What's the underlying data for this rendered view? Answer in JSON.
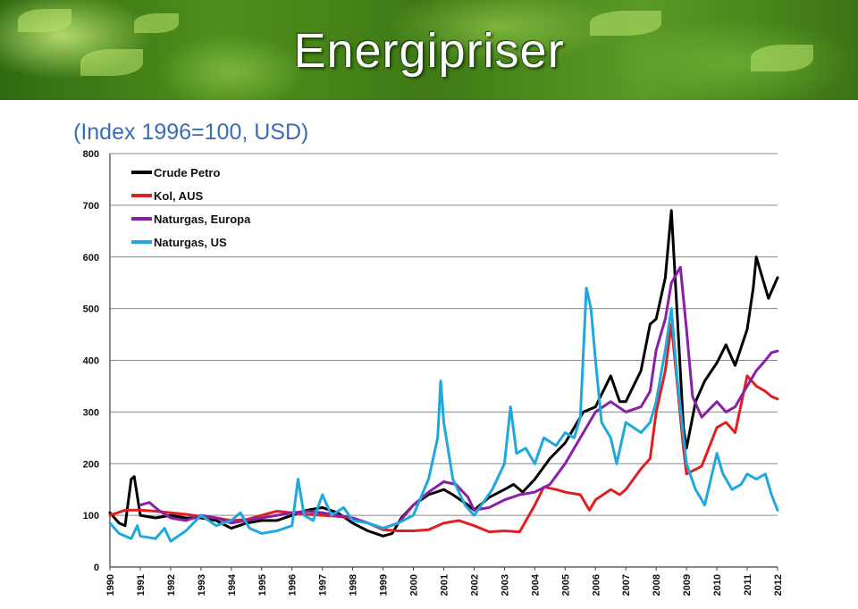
{
  "header": {
    "title": "Energipriser"
  },
  "chart_data": {
    "type": "line",
    "title": "(Index 1996=100, USD)",
    "xlabel": "",
    "ylabel": "",
    "xlim": [
      1990,
      2012
    ],
    "ylim": [
      0,
      800
    ],
    "yticks": [
      "0",
      "100",
      "200",
      "300",
      "400",
      "500",
      "600",
      "700",
      "800"
    ],
    "xticks": [
      "1990",
      "1991",
      "1992",
      "1993",
      "1994",
      "1995",
      "1996",
      "1997",
      "1998",
      "1999",
      "2000",
      "2001",
      "2002",
      "2003",
      "2004",
      "2005",
      "2006",
      "2007",
      "2008",
      "2009",
      "2010",
      "2011",
      "2012"
    ],
    "grid": "horizontal",
    "legend_position": "top-left",
    "series": [
      {
        "name": "Crude Petro",
        "color": "#000000",
        "points": [
          [
            1990,
            105
          ],
          [
            1990.3,
            85
          ],
          [
            1990.5,
            80
          ],
          [
            1990.7,
            170
          ],
          [
            1990.8,
            175
          ],
          [
            1991,
            100
          ],
          [
            1991.5,
            95
          ],
          [
            1992,
            100
          ],
          [
            1992.5,
            95
          ],
          [
            1993,
            95
          ],
          [
            1993.5,
            90
          ],
          [
            1994,
            75
          ],
          [
            1994.5,
            85
          ],
          [
            1995,
            90
          ],
          [
            1995.5,
            90
          ],
          [
            1996,
            100
          ],
          [
            1996.5,
            110
          ],
          [
            1997,
            115
          ],
          [
            1997.5,
            105
          ],
          [
            1998,
            85
          ],
          [
            1998.5,
            70
          ],
          [
            1999,
            60
          ],
          [
            1999.3,
            65
          ],
          [
            1999.6,
            95
          ],
          [
            2000,
            120
          ],
          [
            2000.5,
            140
          ],
          [
            2001,
            150
          ],
          [
            2001.3,
            140
          ],
          [
            2001.8,
            120
          ],
          [
            2002,
            110
          ],
          [
            2002.5,
            135
          ],
          [
            2003,
            150
          ],
          [
            2003.3,
            160
          ],
          [
            2003.6,
            145
          ],
          [
            2004,
            170
          ],
          [
            2004.5,
            210
          ],
          [
            2005,
            240
          ],
          [
            2005.6,
            300
          ],
          [
            2006,
            310
          ],
          [
            2006.5,
            370
          ],
          [
            2006.8,
            320
          ],
          [
            2007,
            320
          ],
          [
            2007.5,
            380
          ],
          [
            2007.8,
            470
          ],
          [
            2008,
            480
          ],
          [
            2008.3,
            560
          ],
          [
            2008.5,
            690
          ],
          [
            2008.7,
            480
          ],
          [
            2008.9,
            270
          ],
          [
            2009,
            230
          ],
          [
            2009.3,
            320
          ],
          [
            2009.6,
            360
          ],
          [
            2010,
            395
          ],
          [
            2010.3,
            430
          ],
          [
            2010.6,
            390
          ],
          [
            2011,
            460
          ],
          [
            2011.2,
            540
          ],
          [
            2011.3,
            600
          ],
          [
            2011.5,
            560
          ],
          [
            2011.7,
            520
          ],
          [
            2012,
            560
          ]
        ]
      },
      {
        "name": "Kol, AUS",
        "color": "#e02020",
        "points": [
          [
            1990,
            100
          ],
          [
            1990.5,
            110
          ],
          [
            1991,
            110
          ],
          [
            1991.5,
            108
          ],
          [
            1992,
            105
          ],
          [
            1992.5,
            102
          ],
          [
            1993,
            98
          ],
          [
            1993.5,
            95
          ],
          [
            1994,
            90
          ],
          [
            1994.5,
            92
          ],
          [
            1995,
            100
          ],
          [
            1995.5,
            108
          ],
          [
            1996,
            105
          ],
          [
            1996.5,
            102
          ],
          [
            1997,
            100
          ],
          [
            1997.5,
            98
          ],
          [
            1998,
            95
          ],
          [
            1998.5,
            85
          ],
          [
            1999,
            72
          ],
          [
            1999.5,
            70
          ],
          [
            2000,
            70
          ],
          [
            2000.5,
            72
          ],
          [
            2001,
            85
          ],
          [
            2001.5,
            90
          ],
          [
            2002,
            80
          ],
          [
            2002.5,
            68
          ],
          [
            2003,
            70
          ],
          [
            2003.5,
            68
          ],
          [
            2004,
            120
          ],
          [
            2004.3,
            155
          ],
          [
            2004.7,
            150
          ],
          [
            2005,
            145
          ],
          [
            2005.5,
            140
          ],
          [
            2005.8,
            110
          ],
          [
            2006,
            130
          ],
          [
            2006.5,
            150
          ],
          [
            2006.8,
            140
          ],
          [
            2007,
            150
          ],
          [
            2007.5,
            190
          ],
          [
            2007.8,
            210
          ],
          [
            2008,
            300
          ],
          [
            2008.3,
            380
          ],
          [
            2008.5,
            470
          ],
          [
            2008.7,
            350
          ],
          [
            2008.9,
            230
          ],
          [
            2009,
            180
          ],
          [
            2009.5,
            195
          ],
          [
            2010,
            270
          ],
          [
            2010.3,
            280
          ],
          [
            2010.6,
            260
          ],
          [
            2011,
            370
          ],
          [
            2011.3,
            350
          ],
          [
            2011.6,
            340
          ],
          [
            2011.8,
            330
          ],
          [
            2012,
            325
          ]
        ]
      },
      {
        "name": "Naturgas, Europa",
        "color": "#8a1fa8",
        "points": [
          [
            1991,
            120
          ],
          [
            1991.3,
            125
          ],
          [
            1991.6,
            110
          ],
          [
            1992,
            95
          ],
          [
            1992.5,
            90
          ],
          [
            1993,
            100
          ],
          [
            1993.5,
            95
          ],
          [
            1994,
            85
          ],
          [
            1994.5,
            90
          ],
          [
            1995,
            95
          ],
          [
            1995.5,
            100
          ],
          [
            1996,
            105
          ],
          [
            1996.5,
            108
          ],
          [
            1997,
            105
          ],
          [
            1997.5,
            100
          ],
          [
            1998,
            95
          ],
          [
            1998.5,
            85
          ],
          [
            1999,
            75
          ],
          [
            1999.5,
            85
          ],
          [
            2000,
            120
          ],
          [
            2000.5,
            145
          ],
          [
            2001,
            165
          ],
          [
            2001.4,
            160
          ],
          [
            2001.8,
            135
          ],
          [
            2002,
            110
          ],
          [
            2002.5,
            115
          ],
          [
            2003,
            130
          ],
          [
            2003.5,
            140
          ],
          [
            2004,
            145
          ],
          [
            2004.5,
            160
          ],
          [
            2005,
            200
          ],
          [
            2005.5,
            250
          ],
          [
            2006,
            300
          ],
          [
            2006.5,
            320
          ],
          [
            2007,
            300
          ],
          [
            2007.5,
            310
          ],
          [
            2007.8,
            340
          ],
          [
            2008,
            420
          ],
          [
            2008.3,
            480
          ],
          [
            2008.5,
            550
          ],
          [
            2008.8,
            580
          ],
          [
            2009,
            460
          ],
          [
            2009.2,
            330
          ],
          [
            2009.5,
            290
          ],
          [
            2010,
            320
          ],
          [
            2010.3,
            300
          ],
          [
            2010.6,
            310
          ],
          [
            2011,
            350
          ],
          [
            2011.3,
            380
          ],
          [
            2011.6,
            400
          ],
          [
            2011.8,
            415
          ],
          [
            2012,
            418
          ]
        ]
      },
      {
        "name": "Naturgas, US",
        "color": "#1ea8de",
        "points": [
          [
            1990,
            85
          ],
          [
            1990.3,
            65
          ],
          [
            1990.7,
            55
          ],
          [
            1990.9,
            80
          ],
          [
            1991,
            60
          ],
          [
            1991.5,
            55
          ],
          [
            1991.8,
            75
          ],
          [
            1992,
            50
          ],
          [
            1992.5,
            70
          ],
          [
            1993,
            100
          ],
          [
            1993.5,
            80
          ],
          [
            1994,
            90
          ],
          [
            1994.3,
            105
          ],
          [
            1994.6,
            75
          ],
          [
            1995,
            65
          ],
          [
            1995.5,
            70
          ],
          [
            1996,
            80
          ],
          [
            1996.2,
            170
          ],
          [
            1996.4,
            100
          ],
          [
            1996.7,
            90
          ],
          [
            1997,
            140
          ],
          [
            1997.3,
            100
          ],
          [
            1997.7,
            115
          ],
          [
            1998,
            90
          ],
          [
            1998.5,
            85
          ],
          [
            1999,
            75
          ],
          [
            1999.5,
            85
          ],
          [
            2000,
            100
          ],
          [
            2000.5,
            170
          ],
          [
            2000.8,
            250
          ],
          [
            2000.9,
            360
          ],
          [
            2001,
            280
          ],
          [
            2001.3,
            170
          ],
          [
            2001.7,
            120
          ],
          [
            2002,
            100
          ],
          [
            2002.3,
            125
          ],
          [
            2002.6,
            150
          ],
          [
            2003,
            200
          ],
          [
            2003.2,
            310
          ],
          [
            2003.4,
            220
          ],
          [
            2003.7,
            230
          ],
          [
            2004,
            200
          ],
          [
            2004.3,
            250
          ],
          [
            2004.7,
            235
          ],
          [
            2005,
            260
          ],
          [
            2005.3,
            250
          ],
          [
            2005.5,
            290
          ],
          [
            2005.7,
            540
          ],
          [
            2005.85,
            500
          ],
          [
            2006,
            400
          ],
          [
            2006.2,
            280
          ],
          [
            2006.5,
            250
          ],
          [
            2006.7,
            200
          ],
          [
            2007,
            280
          ],
          [
            2007.5,
            260
          ],
          [
            2007.8,
            280
          ],
          [
            2008,
            320
          ],
          [
            2008.3,
            420
          ],
          [
            2008.5,
            500
          ],
          [
            2008.7,
            360
          ],
          [
            2009,
            200
          ],
          [
            2009.3,
            150
          ],
          [
            2009.6,
            120
          ],
          [
            2010,
            220
          ],
          [
            2010.2,
            180
          ],
          [
            2010.5,
            150
          ],
          [
            2010.8,
            160
          ],
          [
            2011,
            180
          ],
          [
            2011.3,
            170
          ],
          [
            2011.6,
            180
          ],
          [
            2011.8,
            140
          ],
          [
            2012,
            110
          ]
        ]
      }
    ]
  }
}
